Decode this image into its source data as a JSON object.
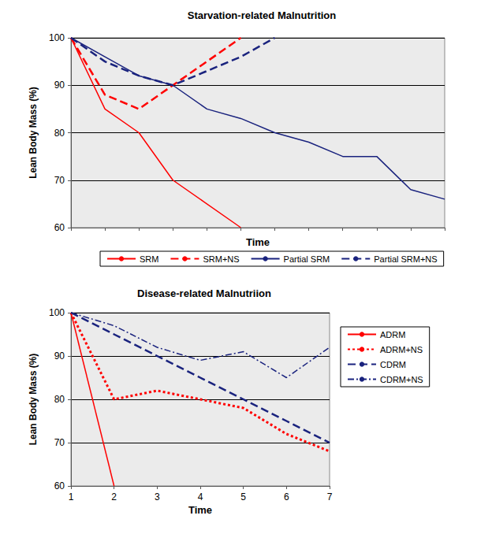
{
  "chart_data": [
    {
      "type": "line",
      "title": "Starvation-related Malnutrition",
      "xlabel": "Time",
      "ylabel": "Lean Body Mass (%)",
      "xlim": [
        0,
        11
      ],
      "xticks": [
        0,
        1,
        2,
        3,
        4,
        5,
        6,
        7,
        8,
        9,
        10,
        11
      ],
      "ylim": [
        60,
        100
      ],
      "yticks": [
        60,
        70,
        80,
        90,
        100
      ],
      "grid": true,
      "legend": "bottom",
      "tick_labels": "y",
      "series": [
        {
          "name": "SRM",
          "color": "#ff0000",
          "line_style": "solid",
          "x": [
            0,
            1,
            2,
            3,
            5
          ],
          "values": [
            100,
            85,
            80,
            70,
            60
          ]
        },
        {
          "name": "SRM+NS",
          "color": "#ff0000",
          "line_style": "dashed",
          "x": [
            0,
            1,
            2,
            3,
            4,
            5
          ],
          "values": [
            100,
            88,
            85,
            90,
            95,
            100
          ]
        },
        {
          "name": "Partial SRM",
          "color": "#1a237e",
          "line_style": "solid",
          "x": [
            0,
            1,
            2,
            3,
            4,
            5,
            6,
            7,
            8,
            9,
            10,
            11
          ],
          "values": [
            100,
            96,
            92,
            90,
            85,
            83,
            80,
            78,
            75,
            75,
            68,
            66
          ]
        },
        {
          "name": "Partial SRM+NS",
          "color": "#1a237e",
          "line_style": "dashed",
          "x": [
            0,
            1,
            2,
            3,
            4,
            5,
            6
          ],
          "values": [
            100,
            95,
            92,
            90,
            93,
            96,
            100
          ]
        }
      ]
    },
    {
      "type": "line",
      "title": "Disease-related Malnutriion",
      "xlabel": "Time",
      "ylabel": "Lean Body Mass (%)",
      "x": [
        1,
        2,
        3,
        4,
        5,
        6,
        7
      ],
      "xlim": [
        1,
        7
      ],
      "xticks": [
        1,
        2,
        3,
        4,
        5,
        6,
        7
      ],
      "ylim": [
        60,
        100
      ],
      "yticks": [
        60,
        70,
        80,
        90,
        100
      ],
      "grid": true,
      "legend": "right",
      "series": [
        {
          "name": "ADRM",
          "color": "#ff0000",
          "line_style": "solid",
          "values": [
            100,
            60,
            null,
            null,
            null,
            null,
            null
          ]
        },
        {
          "name": "ADRM+NS",
          "color": "#ff0000",
          "line_style": "dotted",
          "values": [
            100,
            80,
            82,
            80,
            78,
            72,
            68
          ]
        },
        {
          "name": "CDRM",
          "color": "#1a237e",
          "line_style": "dashed",
          "values": [
            100,
            95,
            90,
            85,
            80,
            75,
            70
          ]
        },
        {
          "name": "CDRM+NS",
          "color": "#1a237e",
          "line_style": "dashdot",
          "values": [
            100,
            97,
            92,
            89,
            91,
            85,
            92
          ]
        }
      ]
    }
  ]
}
